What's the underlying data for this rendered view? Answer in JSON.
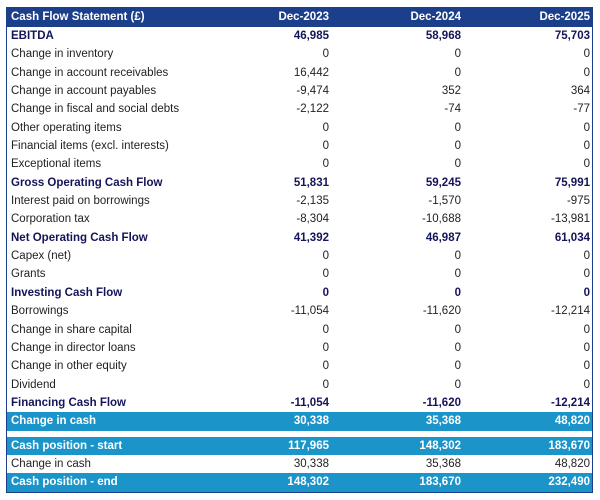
{
  "table": {
    "title": "Cash Flow Statement (£)",
    "columns": [
      "Dec-2023",
      "Dec-2024",
      "Dec-2025"
    ],
    "rows": [
      {
        "label": "EBITDA",
        "values": [
          "46,985",
          "58,968",
          "75,703"
        ],
        "style": "bold"
      },
      {
        "label": "Change in inventory",
        "values": [
          "0",
          "0",
          "0"
        ],
        "style": "normal"
      },
      {
        "label": "Change in account receivables",
        "values": [
          "16,442",
          "0",
          "0"
        ],
        "style": "normal"
      },
      {
        "label": "Change in account payables",
        "values": [
          "-9,474",
          "352",
          "364"
        ],
        "style": "normal"
      },
      {
        "label": "Change in fiscal and social debts",
        "values": [
          "-2,122",
          "-74",
          "-77"
        ],
        "style": "normal"
      },
      {
        "label": "Other operating items",
        "values": [
          "0",
          "0",
          "0"
        ],
        "style": "normal"
      },
      {
        "label": "Financial items (excl. interests)",
        "values": [
          "0",
          "0",
          "0"
        ],
        "style": "normal"
      },
      {
        "label": "Exceptional items",
        "values": [
          "0",
          "0",
          "0"
        ],
        "style": "normal"
      },
      {
        "label": "Gross Operating Cash Flow",
        "values": [
          "51,831",
          "59,245",
          "75,991"
        ],
        "style": "bold"
      },
      {
        "label": "Interest paid on borrowings",
        "values": [
          "-2,135",
          "-1,570",
          "-975"
        ],
        "style": "normal"
      },
      {
        "label": "Corporation tax",
        "values": [
          "-8,304",
          "-10,688",
          "-13,981"
        ],
        "style": "normal"
      },
      {
        "label": "Net Operating Cash Flow",
        "values": [
          "41,392",
          "46,987",
          "61,034"
        ],
        "style": "bold"
      },
      {
        "label": "Capex (net)",
        "values": [
          "0",
          "0",
          "0"
        ],
        "style": "normal"
      },
      {
        "label": "Grants",
        "values": [
          "0",
          "0",
          "0"
        ],
        "style": "normal"
      },
      {
        "label": "Investing Cash Flow",
        "values": [
          "0",
          "0",
          "0"
        ],
        "style": "bold"
      },
      {
        "label": "Borrowings",
        "values": [
          "-11,054",
          "-11,620",
          "-12,214"
        ],
        "style": "normal"
      },
      {
        "label": "Change in share capital",
        "values": [
          "0",
          "0",
          "0"
        ],
        "style": "normal"
      },
      {
        "label": "Change in director loans",
        "values": [
          "0",
          "0",
          "0"
        ],
        "style": "normal"
      },
      {
        "label": "Change in other equity",
        "values": [
          "0",
          "0",
          "0"
        ],
        "style": "normal"
      },
      {
        "label": "Dividend",
        "values": [
          "0",
          "0",
          "0"
        ],
        "style": "normal"
      },
      {
        "label": "Financing Cash Flow",
        "values": [
          "-11,054",
          "-11,620",
          "-12,214"
        ],
        "style": "bold"
      },
      {
        "label": "Change in cash",
        "values": [
          "30,338",
          "35,368",
          "48,820"
        ],
        "style": "teal"
      }
    ],
    "summary_rows": [
      {
        "label": "Cash position - start",
        "values": [
          "117,965",
          "148,302",
          "183,670"
        ],
        "style": "teal"
      },
      {
        "label": "Change in cash",
        "values": [
          "30,338",
          "35,368",
          "48,820"
        ],
        "style": "normal"
      },
      {
        "label": "Cash position - end",
        "values": [
          "148,302",
          "183,670",
          "232,490"
        ],
        "style": "teal"
      }
    ]
  },
  "colors": {
    "header": "#1c3f8c",
    "highlight": "#1a94c9",
    "bold_text": "#14145a"
  }
}
